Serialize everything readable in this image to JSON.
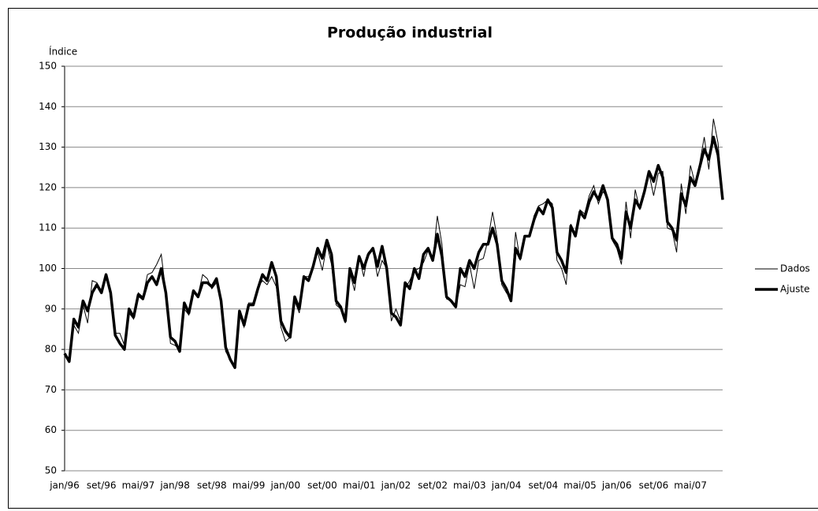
{
  "chart_data": {
    "type": "line",
    "title": "Produção industrial",
    "y_label": "Índice",
    "categories": [
      "jan/96",
      null,
      null,
      null,
      null,
      null,
      null,
      null,
      "set/96",
      null,
      null,
      null,
      null,
      null,
      null,
      null,
      "mai/97",
      null,
      null,
      null,
      null,
      null,
      null,
      null,
      "jan/98",
      null,
      null,
      null,
      null,
      null,
      null,
      null,
      "set/98",
      null,
      null,
      null,
      null,
      null,
      null,
      null,
      "mai/99",
      null,
      null,
      null,
      null,
      null,
      null,
      null,
      "jan/00",
      null,
      null,
      null,
      null,
      null,
      null,
      null,
      "set/00",
      null,
      null,
      null,
      null,
      null,
      null,
      null,
      "mai/01",
      null,
      null,
      null,
      null,
      null,
      null,
      null,
      "jan/02",
      null,
      null,
      null,
      null,
      null,
      null,
      null,
      "set/02",
      null,
      null,
      null,
      null,
      null,
      null,
      null,
      "mai/03",
      null,
      null,
      null,
      null,
      null,
      null,
      null,
      "jan/04",
      null,
      null,
      null,
      null,
      null,
      null,
      null,
      "set/04",
      null,
      null,
      null,
      null,
      null,
      null,
      null,
      "mai/05",
      null,
      null,
      null,
      null,
      null,
      null,
      null,
      "jan/06",
      null,
      null,
      null,
      null,
      null,
      null,
      null,
      "set/06",
      null,
      null,
      null,
      null,
      null,
      null,
      null,
      "mai/07",
      null,
      null,
      null,
      null,
      null,
      null,
      null
    ],
    "series": [
      {
        "name": "Dados",
        "color": "#000000",
        "values": [
          79,
          77.5,
          86,
          84,
          91,
          86.5,
          97,
          96.5,
          94.5,
          98,
          94.5,
          84,
          84,
          81,
          89,
          87.5,
          94,
          93,
          98.5,
          99,
          101,
          103.5,
          94,
          81.5,
          81,
          80,
          90,
          88.5,
          94,
          93.5,
          98.5,
          97.5,
          95,
          96.5,
          91.5,
          79.5,
          77.5,
          75.5,
          88.5,
          85.5,
          91.5,
          91.5,
          95.5,
          97,
          96,
          98,
          95.5,
          85.5,
          82,
          83,
          92,
          89,
          98,
          98,
          100.5,
          104,
          99.5,
          106,
          101,
          91,
          90,
          86.5,
          99,
          94.5,
          103,
          98,
          104,
          104.5,
          98,
          102,
          100,
          87,
          90,
          87,
          95,
          97,
          99.5,
          100,
          101.5,
          104.5,
          102,
          113,
          106,
          92.5,
          92,
          90.5,
          96,
          95.5,
          101,
          95,
          102,
          102.5,
          107,
          114,
          107.5,
          96,
          94,
          92.5,
          109,
          102,
          108,
          108,
          113,
          115.5,
          116,
          117,
          116,
          102,
          100,
          96,
          111,
          108.5,
          114.5,
          113.5,
          118,
          120.5,
          116,
          119,
          117.5,
          107,
          105,
          101,
          116.5,
          107.5,
          119.5,
          114.5,
          118.5,
          123.5,
          118,
          123.5,
          124,
          110,
          109.5,
          104,
          121,
          113.5,
          125.5,
          121,
          126,
          132.5,
          124.5,
          137,
          131,
          117
        ]
      },
      {
        "name": "Ajuste",
        "color": "#000000",
        "values": [
          79,
          77,
          87.5,
          85.5,
          92,
          89.5,
          94,
          96,
          94,
          98.5,
          94,
          83.5,
          81.5,
          80,
          90,
          88,
          93.5,
          92.5,
          96.5,
          98,
          96,
          100,
          94,
          83,
          82,
          79.5,
          91.5,
          89,
          94.5,
          93,
          96.5,
          96.5,
          95.5,
          97.5,
          92,
          80.5,
          77.5,
          75.5,
          89.5,
          86,
          91,
          91,
          95,
          98.5,
          97,
          101.5,
          98,
          87,
          84.5,
          83,
          93,
          90,
          98,
          97,
          100.5,
          105,
          102.5,
          107,
          103.5,
          92,
          90.5,
          87,
          100,
          96.5,
          103,
          100,
          103.5,
          105,
          100.5,
          105.5,
          100,
          89,
          88,
          86,
          96.5,
          95,
          100,
          97.5,
          103.5,
          105,
          102,
          108.5,
          103,
          93,
          92,
          90.5,
          100,
          98,
          102,
          100,
          104,
          106,
          106,
          110,
          106,
          97,
          95,
          92,
          105,
          102.5,
          108,
          108,
          112,
          115,
          113.5,
          117,
          115,
          104,
          102,
          99,
          110.5,
          108,
          114,
          112.5,
          116.5,
          119,
          117,
          120.5,
          117,
          107.5,
          106,
          102.5,
          114,
          110,
          117,
          115,
          119,
          124,
          121.5,
          125.5,
          122.5,
          111.5,
          110,
          107,
          118.5,
          115.5,
          122.5,
          120.5,
          125,
          129.5,
          127,
          132.5,
          128,
          117
        ]
      }
    ],
    "ylim": [
      50,
      150
    ],
    "yticks": [
      50,
      60,
      70,
      80,
      90,
      100,
      110,
      120,
      130,
      140,
      150
    ],
    "grid": true,
    "legend": "right"
  }
}
